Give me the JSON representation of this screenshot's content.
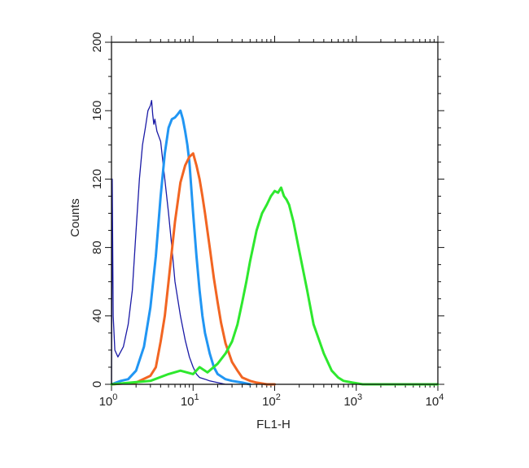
{
  "chart_data": {
    "type": "line",
    "title": "",
    "xlabel": "FL1-H",
    "ylabel": "Counts",
    "xscale": "log",
    "xlim": [
      1,
      10000
    ],
    "ylim": [
      0,
      200
    ],
    "grid": false,
    "legend": "none",
    "x_ticks": [
      {
        "value": 1,
        "base": "10",
        "exp": "0"
      },
      {
        "value": 10,
        "base": "10",
        "exp": "1"
      },
      {
        "value": 100,
        "base": "10",
        "exp": "2"
      },
      {
        "value": 1000,
        "base": "10",
        "exp": "3"
      },
      {
        "value": 10000,
        "base": "10",
        "exp": "4"
      }
    ],
    "y_ticks": [
      0,
      40,
      80,
      120,
      160,
      200
    ],
    "series": [
      {
        "color": "#1a1aa6",
        "stroke": 1.3,
        "x": [
          1.0,
          1.02,
          1.05,
          1.1,
          1.2,
          1.4,
          1.6,
          1.8,
          2.0,
          2.2,
          2.4,
          2.6,
          2.8,
          3.0,
          3.1,
          3.2,
          3.3,
          3.4,
          3.6,
          3.8,
          4.0,
          4.5,
          5.0,
          5.5,
          6.0,
          7.0,
          8.0,
          9.0,
          10.0,
          11.0,
          12.0,
          14.0,
          16.0,
          20.0,
          25.0,
          30.0
        ],
        "y": [
          0,
          120,
          40,
          20,
          16,
          22,
          35,
          55,
          90,
          120,
          140,
          150,
          160,
          163,
          166,
          158,
          152,
          155,
          148,
          145,
          142,
          120,
          100,
          80,
          60,
          40,
          26,
          16,
          10,
          6,
          4,
          3,
          2,
          1,
          0,
          0
        ]
      },
      {
        "color": "#2196f3",
        "stroke": 3,
        "x": [
          1.0,
          1.3,
          1.6,
          2.0,
          2.5,
          3.0,
          3.5,
          4.0,
          4.5,
          5.0,
          5.5,
          6.0,
          6.5,
          7.0,
          7.5,
          8.0,
          8.5,
          9.0,
          10.0,
          11.0,
          12.0,
          13.0,
          14.0,
          16.0,
          18.0,
          20.0,
          25.0,
          30.0,
          40.0,
          50.0
        ],
        "y": [
          0,
          2,
          3,
          8,
          22,
          45,
          75,
          110,
          135,
          150,
          155,
          156,
          158,
          160,
          155,
          148,
          140,
          130,
          100,
          75,
          55,
          40,
          30,
          18,
          10,
          6,
          3,
          2,
          1,
          0
        ]
      },
      {
        "color": "#f26522",
        "stroke": 3,
        "x": [
          1.0,
          2.0,
          3.0,
          3.5,
          4.0,
          4.5,
          5.0,
          6.0,
          7.0,
          8.0,
          9.0,
          10.0,
          11.0,
          12.0,
          13.0,
          14.0,
          16.0,
          18.0,
          20.0,
          22.0,
          25.0,
          30.0,
          35.0,
          40.0,
          50.0,
          60.0,
          80.0,
          100.0
        ],
        "y": [
          0,
          1,
          5,
          10,
          25,
          40,
          60,
          95,
          118,
          128,
          133,
          135,
          128,
          120,
          110,
          100,
          80,
          62,
          48,
          36,
          24,
          13,
          8,
          4,
          2,
          1,
          0,
          0
        ]
      },
      {
        "color": "#2ee82e",
        "stroke": 3,
        "x": [
          1.0,
          3.0,
          5.0,
          7.0,
          10.0,
          12.0,
          15.0,
          20.0,
          25.0,
          30.0,
          35.0,
          40.0,
          45.0,
          50.0,
          60.0,
          70.0,
          80.0,
          90.0,
          100.0,
          110.0,
          120.0,
          130.0,
          140.0,
          150.0,
          170.0,
          200.0,
          250.0,
          300.0,
          400.0,
          500.0,
          600.0,
          700.0,
          900.0,
          1200.0,
          2000.0,
          5000.0,
          10000.0
        ],
        "y": [
          0,
          2,
          6,
          8,
          6,
          10,
          7,
          12,
          18,
          25,
          35,
          48,
          60,
          72,
          90,
          100,
          105,
          110,
          113,
          112,
          115,
          110,
          108,
          105,
          95,
          78,
          55,
          35,
          18,
          8,
          4,
          2,
          1,
          0,
          0,
          0,
          0
        ]
      }
    ]
  }
}
